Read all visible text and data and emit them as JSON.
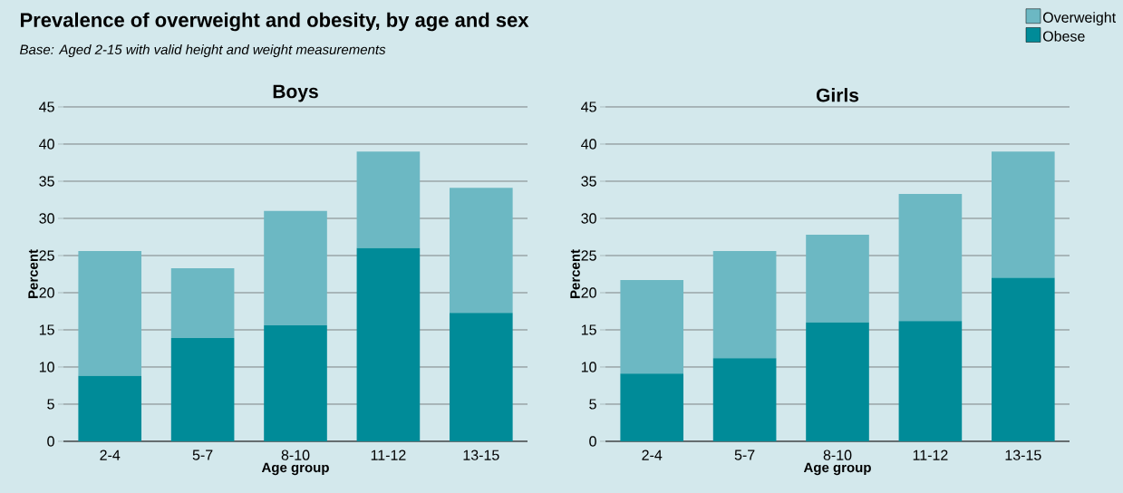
{
  "chart_data": [
    {
      "type": "bar",
      "stacked": true,
      "title": "Boys",
      "xlabel": "Age group",
      "ylabel": "Percent",
      "annotations": [
        "Prevalence of overweight and obesity, by age and sex",
        "Base: Aged 2-15 with valid height and weight measurements"
      ],
      "categories": [
        "2-4",
        "5-7",
        "8-10",
        "11-12",
        "13-15"
      ],
      "series": [
        {
          "color": "#008b98",
          "values": [
            8.8,
            13.9,
            15.6,
            26.0,
            17.3
          ]
        },
        {
          "color": "#6cb8c3",
          "values": [
            16.8,
            9.4,
            15.4,
            13.0,
            16.8
          ]
        }
      ],
      "ylim": [
        0,
        45
      ],
      "yticks": [
        0,
        5,
        10,
        15,
        20,
        25,
        30,
        35,
        40,
        45
      ],
      "grid": "y"
    },
    {
      "type": "bar",
      "stacked": true,
      "title": "Girls",
      "xlabel": "Age group",
      "ylabel": "Percent",
      "categories": [
        "2-4",
        "5-7",
        "8-10",
        "11-12",
        "13-15"
      ],
      "series": [
        {
          "name": "Obese",
          "color": "#008b98",
          "values": [
            9.1,
            11.2,
            16.0,
            16.2,
            22.0
          ]
        },
        {
          "name": "Overweight",
          "color": "#6cb8c3",
          "values": [
            12.6,
            14.4,
            11.8,
            17.1,
            17.0
          ]
        }
      ],
      "ylim": [
        0,
        45
      ],
      "yticks": [
        0,
        5,
        10,
        15,
        20,
        25,
        30,
        35,
        40,
        45
      ],
      "grid": "y",
      "legend": "top right"
    }
  ]
}
